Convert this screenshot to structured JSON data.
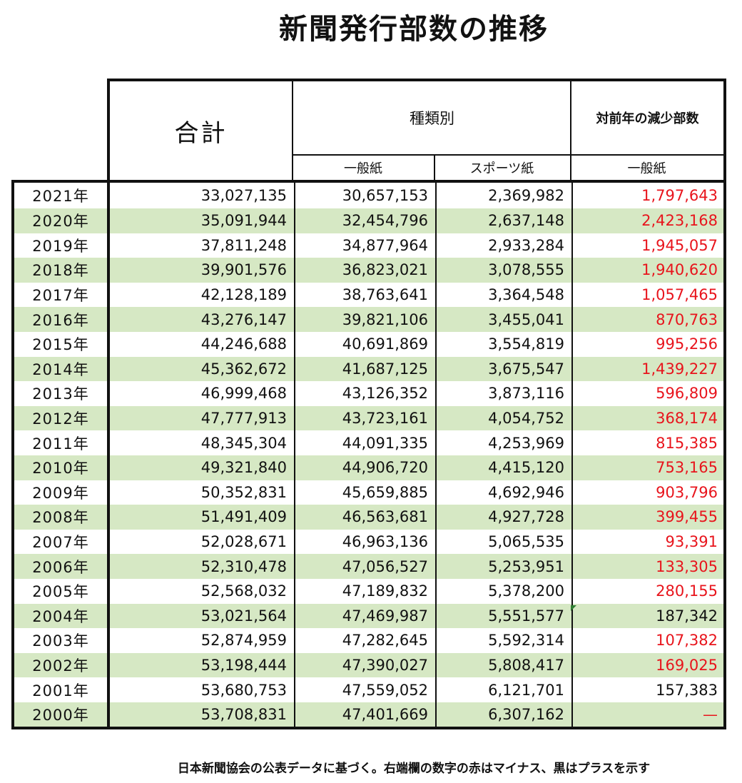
{
  "title": "新聞発行部数の推移",
  "header": {
    "total": "合計",
    "kind": "種類別",
    "decrease": "対前年の減少部数",
    "sub_general": "一般紙",
    "sub_sports": "スポーツ紙",
    "sub_decrease": "一般紙"
  },
  "rows": [
    {
      "year": "2021年",
      "total": "33,027,135",
      "general": "30,657,153",
      "sports": "2,369,982",
      "change": "1,797,643",
      "sign": "minus"
    },
    {
      "year": "2020年",
      "total": "35,091,944",
      "general": "32,454,796",
      "sports": "2,637,148",
      "change": "2,423,168",
      "sign": "minus"
    },
    {
      "year": "2019年",
      "total": "37,811,248",
      "general": "34,877,964",
      "sports": "2,933,284",
      "change": "1,945,057",
      "sign": "minus"
    },
    {
      "year": "2018年",
      "total": "39,901,576",
      "general": "36,823,021",
      "sports": "3,078,555",
      "change": "1,940,620",
      "sign": "minus"
    },
    {
      "year": "2017年",
      "total": "42,128,189",
      "general": "38,763,641",
      "sports": "3,364,548",
      "change": "1,057,465",
      "sign": "minus"
    },
    {
      "year": "2016年",
      "total": "43,276,147",
      "general": "39,821,106",
      "sports": "3,455,041",
      "change": "870,763",
      "sign": "minus"
    },
    {
      "year": "2015年",
      "total": "44,246,688",
      "general": "40,691,869",
      "sports": "3,554,819",
      "change": "995,256",
      "sign": "minus"
    },
    {
      "year": "2014年",
      "total": "45,362,672",
      "general": "41,687,125",
      "sports": "3,675,547",
      "change": "1,439,227",
      "sign": "minus"
    },
    {
      "year": "2013年",
      "total": "46,999,468",
      "general": "43,126,352",
      "sports": "3,873,116",
      "change": "596,809",
      "sign": "minus"
    },
    {
      "year": "2012年",
      "total": "47,777,913",
      "general": "43,723,161",
      "sports": "4,054,752",
      "change": "368,174",
      "sign": "minus"
    },
    {
      "year": "2011年",
      "total": "48,345,304",
      "general": "44,091,335",
      "sports": "4,253,969",
      "change": "815,385",
      "sign": "minus"
    },
    {
      "year": "2010年",
      "total": "49,321,840",
      "general": "44,906,720",
      "sports": "4,415,120",
      "change": "753,165",
      "sign": "minus"
    },
    {
      "year": "2009年",
      "total": "50,352,831",
      "general": "45,659,885",
      "sports": "4,692,946",
      "change": "903,796",
      "sign": "minus"
    },
    {
      "year": "2008年",
      "total": "51,491,409",
      "general": "46,563,681",
      "sports": "4,927,728",
      "change": "399,455",
      "sign": "minus"
    },
    {
      "year": "2007年",
      "total": "52,028,671",
      "general": "46,963,136",
      "sports": "5,065,535",
      "change": "93,391",
      "sign": "minus"
    },
    {
      "year": "2006年",
      "total": "52,310,478",
      "general": "47,056,527",
      "sports": "5,253,951",
      "change": "133,305",
      "sign": "minus"
    },
    {
      "year": "2005年",
      "total": "52,568,032",
      "general": "47,189,832",
      "sports": "5,378,200",
      "change": "280,155",
      "sign": "minus"
    },
    {
      "year": "2004年",
      "total": "53,021,564",
      "general": "47,469,987",
      "sports": "5,551,577",
      "change": "187,342",
      "sign": "plus"
    },
    {
      "year": "2003年",
      "total": "52,874,959",
      "general": "47,282,645",
      "sports": "5,592,314",
      "change": "107,382",
      "sign": "minus"
    },
    {
      "year": "2002年",
      "total": "53,198,444",
      "general": "47,390,027",
      "sports": "5,808,417",
      "change": "169,025",
      "sign": "minus"
    },
    {
      "year": "2001年",
      "total": "53,680,753",
      "general": "47,559,052",
      "sports": "6,121,701",
      "change": "157,383",
      "sign": "plus"
    },
    {
      "year": "2000年",
      "total": "53,708,831",
      "general": "47,401,669",
      "sports": "6,307,162",
      "change": "—",
      "sign": "minus"
    }
  ],
  "colors": {
    "minus": "#e8141c",
    "plus": "#111111",
    "stripe": "#d6e8c4"
  },
  "note": "日本新聞協会の公表データに基づく。右端欄の数字の赤はマイナス、黒はプラスを示す"
}
